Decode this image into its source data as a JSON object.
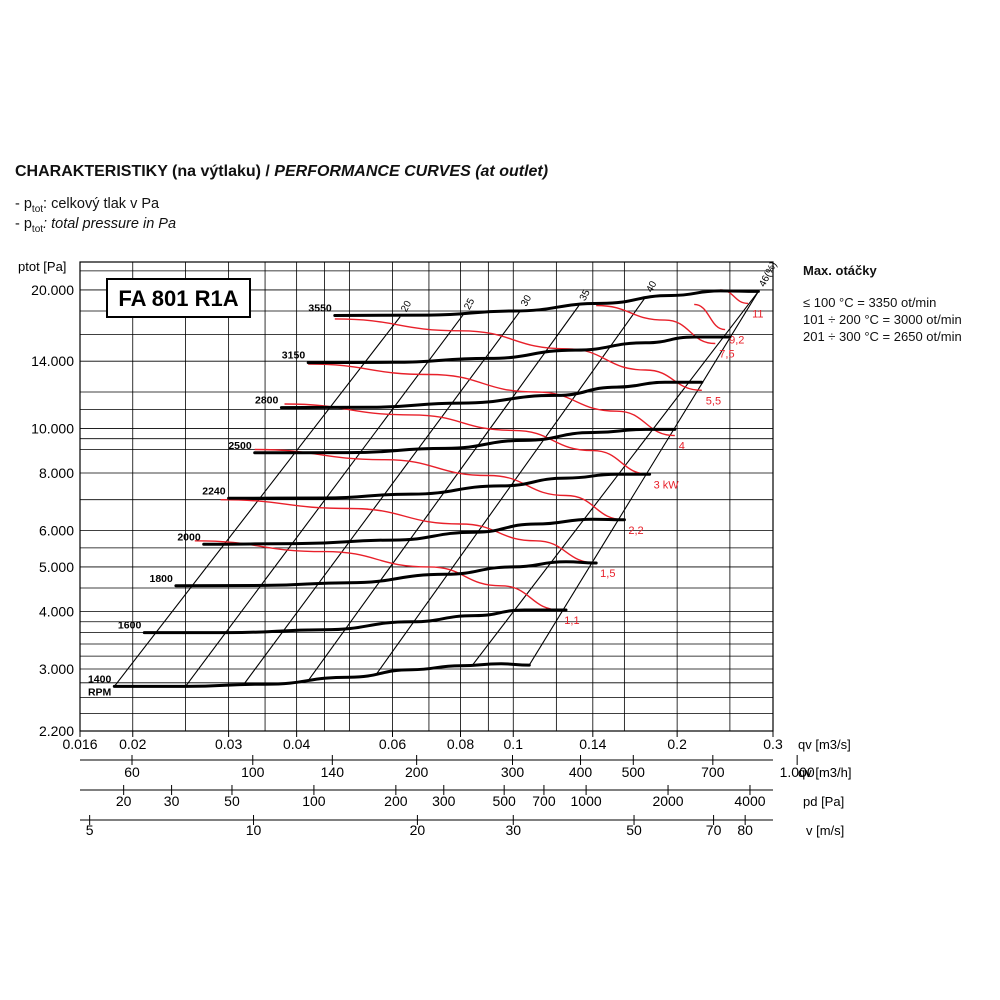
{
  "header": {
    "title_bold": "CHARAKTERISTIKY (na výtlaku) / ",
    "title_italic": "PERFORMANCE CURVES (at outlet)",
    "legend1_dash": "- p",
    "legend1_sub": "tot",
    "legend1_text": ": celkový tlak v Pa",
    "legend2_dash": "- p",
    "legend2_sub": "tot",
    "legend2_text": ": total pressure in Pa"
  },
  "max_speed": {
    "heading": "Max. otáčky",
    "lines": [
      "≤ 100 °C = 3350 ot/min",
      "101 ÷ 200 °C = 3000 ot/min",
      "201 ÷ 300 °C = 2650 ot/min"
    ]
  },
  "colors": {
    "curve": "#000000",
    "power": "#e8202a",
    "grid": "#000000"
  },
  "chart_data": {
    "type": "line",
    "model_label": "FA 801 R1A",
    "ylabel": "ptot [Pa]",
    "y_scale": "log",
    "ylim": [
      2200,
      23000
    ],
    "y_ticks": [
      {
        "v": 2200,
        "label": "2.200"
      },
      {
        "v": 3000,
        "label": "3.000"
      },
      {
        "v": 4000,
        "label": "4.000"
      },
      {
        "v": 5000,
        "label": "5.000"
      },
      {
        "v": 6000,
        "label": "6.000"
      },
      {
        "v": 8000,
        "label": "8.000"
      },
      {
        "v": 10000,
        "label": "10.000"
      },
      {
        "v": 14000,
        "label": "14.000"
      },
      {
        "v": 20000,
        "label": "20.000"
      }
    ],
    "x_scale": "log",
    "xlim": [
      0.016,
      0.3
    ],
    "x_axes": [
      {
        "unit": "qv [m3/s]",
        "ticks": [
          {
            "v": 0.016,
            "label": "0.016"
          },
          {
            "v": 0.02,
            "label": "0.02"
          },
          {
            "v": 0.03,
            "label": "0.03"
          },
          {
            "v": 0.04,
            "label": "0.04"
          },
          {
            "v": 0.06,
            "label": "0.06"
          },
          {
            "v": 0.08,
            "label": "0.08"
          },
          {
            "v": 0.1,
            "label": "0.1"
          },
          {
            "v": 0.14,
            "label": "0.14"
          },
          {
            "v": 0.2,
            "label": "0.2"
          },
          {
            "v": 0.3,
            "label": "0.3"
          }
        ]
      },
      {
        "unit": "qv [m3/h]",
        "ticks": [
          {
            "v": 60,
            "label": "60"
          },
          {
            "v": 100,
            "label": "100"
          },
          {
            "v": 140,
            "label": "140"
          },
          {
            "v": 200,
            "label": "200"
          },
          {
            "v": 300,
            "label": "300"
          },
          {
            "v": 400,
            "label": "400"
          },
          {
            "v": 500,
            "label": "500"
          },
          {
            "v": 700,
            "label": "700"
          },
          {
            "v": 1000,
            "label": "1.000"
          }
        ]
      },
      {
        "unit": "pd [Pa]",
        "ticks": [
          {
            "v": 20,
            "label": "20"
          },
          {
            "v": 30,
            "label": "30"
          },
          {
            "v": 50,
            "label": "50"
          },
          {
            "v": 100,
            "label": "100"
          },
          {
            "v": 200,
            "label": "200"
          },
          {
            "v": 300,
            "label": "300"
          },
          {
            "v": 500,
            "label": "500"
          },
          {
            "v": 700,
            "label": "700"
          },
          {
            "v": 1000,
            "label": "1000"
          },
          {
            "v": 2000,
            "label": "2000"
          },
          {
            "v": 4000,
            "label": "4000"
          }
        ]
      },
      {
        "unit": "v [m/s]",
        "ticks": [
          {
            "v": 5,
            "label": "5"
          },
          {
            "v": 10,
            "label": "10"
          },
          {
            "v": 20,
            "label": "20"
          },
          {
            "v": 30,
            "label": "30"
          },
          {
            "v": 50,
            "label": "50"
          },
          {
            "v": 70,
            "label": "70"
          },
          {
            "v": 80,
            "label": "80"
          }
        ]
      }
    ],
    "series": [
      {
        "name": "1400",
        "unit_label": "RPM",
        "points": [
          [
            0.0185,
            2750
          ],
          [
            0.025,
            2750
          ],
          [
            0.035,
            2780
          ],
          [
            0.05,
            2880
          ],
          [
            0.065,
            2990
          ],
          [
            0.08,
            3050
          ],
          [
            0.095,
            3080
          ],
          [
            0.107,
            3060
          ]
        ]
      },
      {
        "name": "1600",
        "points": [
          [
            0.021,
            3600
          ],
          [
            0.03,
            3600
          ],
          [
            0.045,
            3650
          ],
          [
            0.065,
            3800
          ],
          [
            0.085,
            3920
          ],
          [
            0.105,
            4030
          ],
          [
            0.125,
            4030
          ]
        ]
      },
      {
        "name": "1800",
        "points": [
          [
            0.024,
            4550
          ],
          [
            0.035,
            4560
          ],
          [
            0.05,
            4620
          ],
          [
            0.075,
            4820
          ],
          [
            0.1,
            5000
          ],
          [
            0.125,
            5130
          ],
          [
            0.142,
            5100
          ]
        ]
      },
      {
        "name": "2000",
        "points": [
          [
            0.027,
            5600
          ],
          [
            0.04,
            5620
          ],
          [
            0.06,
            5720
          ],
          [
            0.085,
            5950
          ],
          [
            0.11,
            6200
          ],
          [
            0.14,
            6350
          ],
          [
            0.16,
            6330
          ]
        ]
      },
      {
        "name": "2240",
        "points": [
          [
            0.03,
            7050
          ],
          [
            0.045,
            7060
          ],
          [
            0.065,
            7200
          ],
          [
            0.095,
            7500
          ],
          [
            0.125,
            7800
          ],
          [
            0.155,
            7950
          ],
          [
            0.178,
            7950
          ]
        ]
      },
      {
        "name": "2500",
        "points": [
          [
            0.0335,
            8850
          ],
          [
            0.05,
            8860
          ],
          [
            0.075,
            9050
          ],
          [
            0.105,
            9420
          ],
          [
            0.14,
            9800
          ],
          [
            0.175,
            9950
          ],
          [
            0.198,
            9950
          ]
        ]
      },
      {
        "name": "2800",
        "points": [
          [
            0.0375,
            11100
          ],
          [
            0.055,
            11120
          ],
          [
            0.08,
            11350
          ],
          [
            0.12,
            11800
          ],
          [
            0.155,
            12300
          ],
          [
            0.19,
            12600
          ],
          [
            0.222,
            12600
          ]
        ]
      },
      {
        "name": "3150",
        "points": [
          [
            0.042,
            13900
          ],
          [
            0.06,
            13920
          ],
          [
            0.09,
            14200
          ],
          [
            0.13,
            14800
          ],
          [
            0.175,
            15350
          ],
          [
            0.215,
            15800
          ],
          [
            0.25,
            15800
          ]
        ]
      },
      {
        "name": "3550",
        "points": [
          [
            0.047,
            17600
          ],
          [
            0.07,
            17630
          ],
          [
            0.1,
            18000
          ],
          [
            0.145,
            18700
          ],
          [
            0.195,
            19450
          ],
          [
            0.24,
            19900
          ],
          [
            0.282,
            19850
          ]
        ]
      }
    ],
    "efficiency_lines": [
      {
        "label": "20",
        "p1": [
          0.0185,
          2750
        ],
        "p2": [
          0.062,
          17500
        ]
      },
      {
        "label": "25",
        "p1": [
          0.025,
          2750
        ],
        "p2": [
          0.081,
          17700
        ]
      },
      {
        "label": "30",
        "p1": [
          0.032,
          2780
        ],
        "p2": [
          0.103,
          18000
        ]
      },
      {
        "label": "35",
        "p1": [
          0.042,
          2830
        ],
        "p2": [
          0.132,
          18500
        ]
      },
      {
        "label": "40",
        "p1": [
          0.056,
          2920
        ],
        "p2": [
          0.175,
          19300
        ]
      },
      {
        "label": "46(%)",
        "p1": [
          0.084,
          3050
        ],
        "p2": [
          0.282,
          19850
        ]
      }
    ],
    "outer_boundary": [
      [
        0.107,
        3060
      ],
      [
        0.282,
        19850
      ]
    ],
    "power_curves": [
      {
        "label": "1,1",
        "points": [
          [
            0.026,
            5700
          ],
          [
            0.045,
            5400
          ],
          [
            0.07,
            5000
          ],
          [
            0.095,
            4550
          ],
          [
            0.122,
            4030
          ]
        ]
      },
      {
        "label": "1,5",
        "points": [
          [
            0.029,
            7000
          ],
          [
            0.05,
            6700
          ],
          [
            0.08,
            6200
          ],
          [
            0.11,
            5700
          ],
          [
            0.142,
            5100
          ]
        ]
      },
      {
        "label": "2,2",
        "points": [
          [
            0.0335,
            9000
          ],
          [
            0.058,
            8550
          ],
          [
            0.09,
            7900
          ],
          [
            0.125,
            7150
          ],
          [
            0.16,
            6330
          ]
        ]
      },
      {
        "label": "3 kW",
        "points": [
          [
            0.038,
            11300
          ],
          [
            0.065,
            10700
          ],
          [
            0.1,
            9900
          ],
          [
            0.14,
            8950
          ],
          [
            0.178,
            7950
          ]
        ]
      },
      {
        "label": "4",
        "points": [
          [
            0.042,
            13800
          ],
          [
            0.07,
            13100
          ],
          [
            0.11,
            12000
          ],
          [
            0.155,
            10900
          ],
          [
            0.198,
            9650
          ]
        ]
      },
      {
        "label": "5,5",
        "points": [
          [
            0.047,
            17300
          ],
          [
            0.08,
            16300
          ],
          [
            0.125,
            14900
          ],
          [
            0.175,
            13400
          ],
          [
            0.222,
            12100
          ]
        ]
      },
      {
        "label": "7,5",
        "points": [
          [
            0.142,
            18500
          ],
          [
            0.19,
            17200
          ],
          [
            0.235,
            15300
          ]
        ]
      },
      {
        "label": "9,2",
        "points": [
          [
            0.215,
            18600
          ],
          [
            0.245,
            16400
          ]
        ]
      },
      {
        "label": "11",
        "points": [
          [
            0.24,
            20000
          ],
          [
            0.27,
            18700
          ]
        ]
      }
    ]
  }
}
